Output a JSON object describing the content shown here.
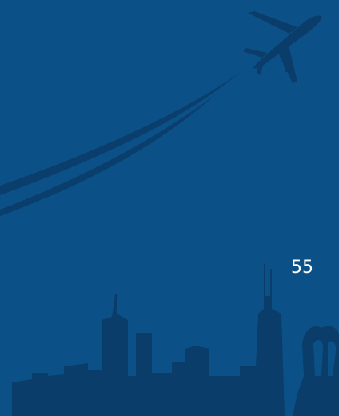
{
  "page_number": "55"
}
